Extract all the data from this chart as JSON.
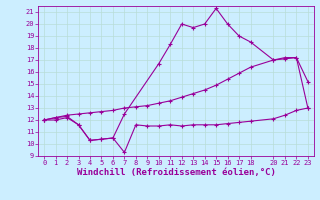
{
  "xlabel": "Windchill (Refroidissement éolien,°C)",
  "bg_color": "#cceeff",
  "grid_color": "#b8ddd8",
  "line_color": "#990099",
  "xlim": [
    -0.5,
    23.5
  ],
  "ylim": [
    9,
    21.5
  ],
  "xticks": [
    0,
    1,
    2,
    3,
    4,
    5,
    6,
    7,
    8,
    9,
    10,
    11,
    12,
    13,
    14,
    15,
    16,
    17,
    18,
    20,
    21,
    22,
    23
  ],
  "yticks": [
    9,
    10,
    11,
    12,
    13,
    14,
    15,
    16,
    17,
    18,
    19,
    20,
    21
  ],
  "line1_x": [
    0,
    1,
    2,
    3,
    4,
    5,
    6,
    7,
    8,
    9,
    10,
    11,
    12,
    13,
    14,
    15,
    16,
    17,
    18,
    20,
    21,
    22,
    23
  ],
  "line1_y": [
    12.0,
    12.0,
    12.2,
    11.6,
    10.3,
    10.4,
    10.5,
    9.3,
    11.6,
    11.5,
    11.5,
    11.6,
    11.5,
    11.6,
    11.6,
    11.6,
    11.7,
    11.8,
    11.9,
    12.1,
    12.4,
    12.8,
    13.0
  ],
  "line2_x": [
    0,
    1,
    2,
    3,
    4,
    5,
    6,
    7,
    8,
    9,
    10,
    11,
    12,
    13,
    14,
    15,
    16,
    17,
    18,
    20,
    21,
    22,
    23
  ],
  "line2_y": [
    12.0,
    12.2,
    12.4,
    12.5,
    12.6,
    12.7,
    12.8,
    13.0,
    13.1,
    13.2,
    13.4,
    13.6,
    13.9,
    14.2,
    14.5,
    14.9,
    15.4,
    15.9,
    16.4,
    17.0,
    17.1,
    17.2,
    13.0
  ],
  "line3_x": [
    0,
    1,
    2,
    3,
    4,
    5,
    6,
    7,
    10,
    11,
    12,
    13,
    14,
    15,
    16,
    17,
    18,
    20,
    21,
    22,
    23
  ],
  "line3_y": [
    12.0,
    12.2,
    12.3,
    11.6,
    10.3,
    10.4,
    10.5,
    12.5,
    16.7,
    18.3,
    20.0,
    19.7,
    20.0,
    21.3,
    20.0,
    19.0,
    18.5,
    17.0,
    17.2,
    17.2,
    15.2
  ],
  "marker": "+",
  "markersize": 3,
  "linewidth": 0.8,
  "tick_fontsize": 5,
  "xlabel_fontsize": 6.5
}
